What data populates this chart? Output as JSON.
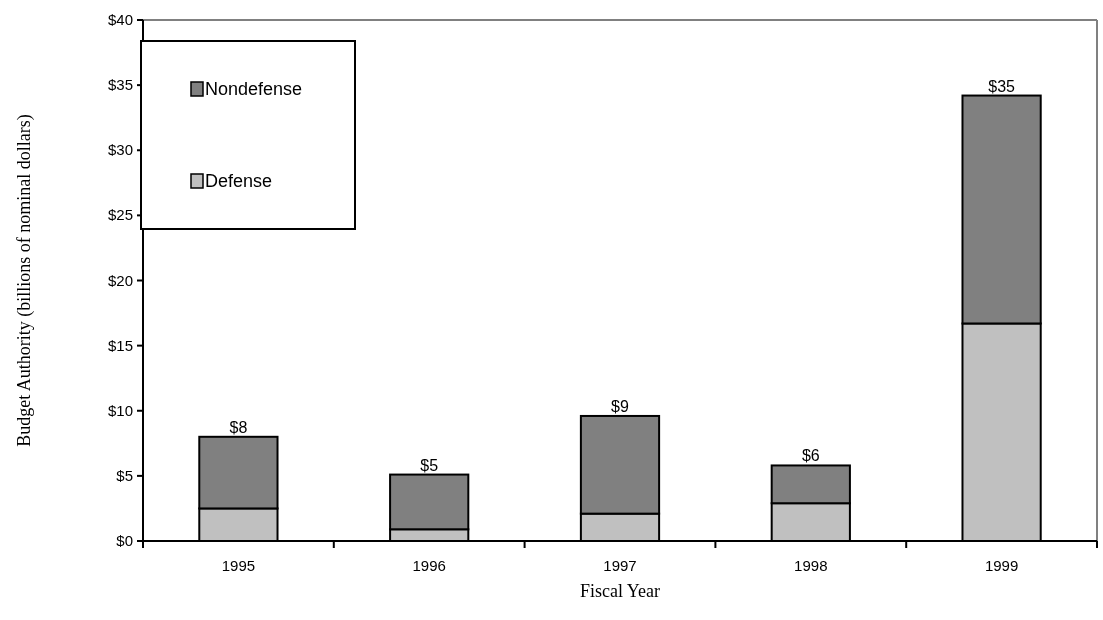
{
  "chart_data": {
    "type": "bar",
    "stacked": true,
    "xlabel": "Fiscal Year",
    "ylabel": "Budget Authority (billions of nominal dollars)",
    "categories": [
      "1995",
      "1996",
      "1997",
      "1998",
      "1999"
    ],
    "series": [
      {
        "name": "Defense",
        "color": "#c0c0c0",
        "values": [
          2.5,
          0.9,
          2.1,
          2.9,
          16.7
        ]
      },
      {
        "name": "Nondefense",
        "color": "#808080",
        "values": [
          5.5,
          4.2,
          7.5,
          2.9,
          17.5
        ]
      }
    ],
    "totals": [
      "$8",
      "$5",
      "$9",
      "$6",
      "$35"
    ],
    "ylim": [
      0,
      40
    ],
    "yticks": [
      {
        "value": 0,
        "label": "$0"
      },
      {
        "value": 5,
        "label": "$5"
      },
      {
        "value": 10,
        "label": "$10"
      },
      {
        "value": 15,
        "label": "$15"
      },
      {
        "value": 20,
        "label": "$20"
      },
      {
        "value": 25,
        "label": "$25"
      },
      {
        "value": 30,
        "label": "$30"
      },
      {
        "value": 35,
        "label": "$35"
      },
      {
        "value": 40,
        "label": "$40"
      }
    ],
    "legend": "top left",
    "grid": false
  }
}
